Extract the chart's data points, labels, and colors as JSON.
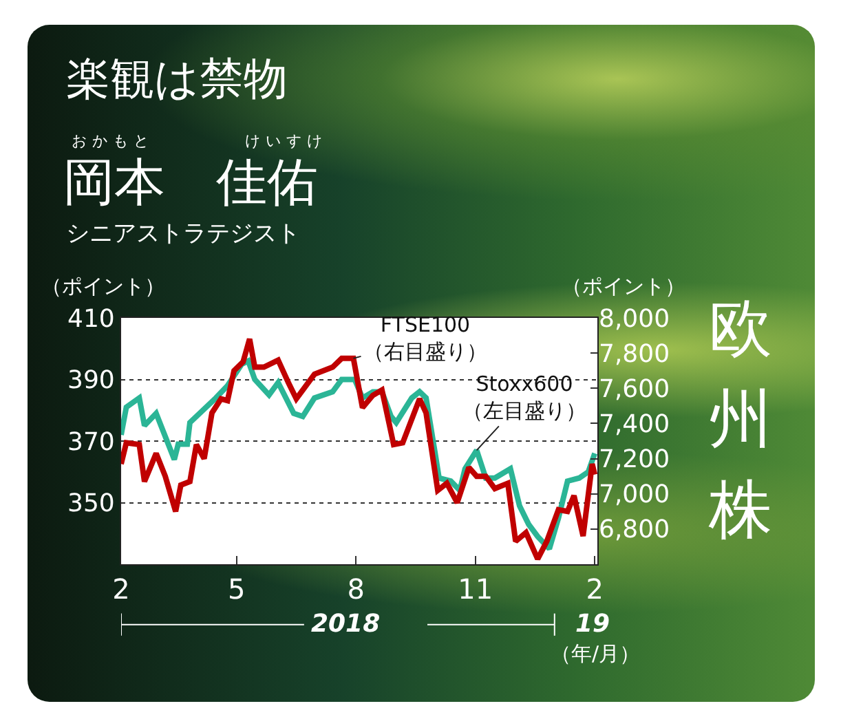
{
  "chart_data": {
    "type": "line",
    "title": "楽観は禁物",
    "subtitle": "岡本　佳佑",
    "ylabel": "（ポイント）",
    "y2label": "（ポイント）",
    "xlim": [
      "2018-02-01",
      "2019-02-03"
    ],
    "xticks": [
      {
        "value": "2018-02-01",
        "label": "2"
      },
      {
        "value": "2018-05-01",
        "label": "5"
      },
      {
        "value": "2018-08-01",
        "label": "8"
      },
      {
        "value": "2018-11-01",
        "label": "11"
      },
      {
        "value": "2019-02-01",
        "label": "2"
      }
    ],
    "ylim": [
      330,
      410
    ],
    "yticks": [
      350,
      370,
      390,
      410
    ],
    "y2lim": [
      6600,
      8000
    ],
    "y2ticks": [
      {
        "value": 6800,
        "label": "6,800"
      },
      {
        "value": 7000,
        "label": "7,000"
      },
      {
        "value": 7200,
        "label": "7,200"
      },
      {
        "value": 7400,
        "label": "7,400"
      },
      {
        "value": 7600,
        "label": "7,600"
      },
      {
        "value": 7800,
        "label": "7,800"
      },
      {
        "value": 8000,
        "label": "8,000"
      }
    ],
    "grid": "y",
    "series": [
      {
        "name": "Stoxx600",
        "color": "#2bb596",
        "x": [
          "2018-02-01",
          "2018-02-05",
          "2018-02-15",
          "2018-02-19",
          "2018-02-28",
          "2018-03-14",
          "2018-03-17",
          "2018-03-24",
          "2018-03-26",
          "2018-04-15",
          "2018-04-24",
          "2018-05-05",
          "2018-05-10",
          "2018-05-15",
          "2018-05-26",
          "2018-06-02",
          "2018-06-14",
          "2018-06-21",
          "2018-06-30",
          "2018-07-14",
          "2018-07-21",
          "2018-07-31",
          "2018-08-06",
          "2018-08-14",
          "2018-08-21",
          "2018-08-28",
          "2018-09-01",
          "2018-09-13",
          "2018-09-19",
          "2018-09-24",
          "2018-10-01",
          "2018-10-04",
          "2018-10-13",
          "2018-10-20",
          "2018-10-24",
          "2018-11-02",
          "2018-11-09",
          "2018-11-16",
          "2018-11-28",
          "2018-12-05",
          "2018-12-12",
          "2018-12-19",
          "2018-12-28",
          "2019-01-04",
          "2019-01-11",
          "2019-01-20",
          "2019-01-27",
          "2019-02-01"
        ],
        "values": [
          372,
          381,
          384,
          375,
          379,
          364,
          369,
          369,
          376,
          384,
          388,
          395,
          396,
          390,
          385,
          389,
          379,
          378,
          384,
          386,
          390,
          390,
          384,
          386,
          386,
          378,
          376,
          384,
          386,
          384,
          366,
          358,
          357,
          354,
          361,
          367,
          358,
          358,
          361,
          349,
          343,
          339,
          335,
          345,
          357,
          358,
          360,
          366
        ]
      },
      {
        "name": "FTSE100",
        "color": "#c00000",
        "axis": "y2",
        "x": [
          "2018-02-01",
          "2018-02-05",
          "2018-02-15",
          "2018-02-19",
          "2018-02-28",
          "2018-03-07",
          "2018-03-15",
          "2018-03-19",
          "2018-03-26",
          "2018-03-31",
          "2018-04-06",
          "2018-04-12",
          "2018-04-19",
          "2018-04-24",
          "2018-04-29",
          "2018-05-06",
          "2018-05-11",
          "2018-05-15",
          "2018-05-22",
          "2018-06-02",
          "2018-06-10",
          "2018-06-16",
          "2018-06-30",
          "2018-07-14",
          "2018-07-21",
          "2018-07-30",
          "2018-08-06",
          "2018-08-14",
          "2018-08-21",
          "2018-08-30",
          "2018-09-06",
          "2018-09-19",
          "2018-09-24",
          "2018-10-03",
          "2018-10-10",
          "2018-10-18",
          "2018-10-27",
          "2018-11-02",
          "2018-11-09",
          "2018-11-16",
          "2018-11-26",
          "2018-12-02",
          "2018-12-10",
          "2018-12-19",
          "2018-12-26",
          "2019-01-04",
          "2019-01-11",
          "2019-01-16",
          "2019-01-23",
          "2019-01-30",
          "2019-02-01"
        ],
        "values": [
          7170,
          7290,
          7280,
          7070,
          7230,
          7100,
          6900,
          7050,
          7070,
          7280,
          7200,
          7460,
          7540,
          7530,
          7700,
          7750,
          7880,
          7720,
          7720,
          7760,
          7630,
          7540,
          7680,
          7720,
          7770,
          7770,
          7490,
          7560,
          7590,
          7280,
          7290,
          7540,
          7460,
          7020,
          7060,
          6950,
          7150,
          7100,
          7100,
          7030,
          7060,
          6730,
          6780,
          6630,
          6730,
          6910,
          6900,
          6990,
          6760,
          7170,
          7110
        ]
      }
    ],
    "annotations": [
      {
        "text": "（左目盛り）",
        "x": "2018-11-02",
        "y": 367
      },
      "（右目盛り）",
      "2018",
      "19",
      "（年/月）",
      "おかもと",
      "けいすけ",
      "シニアストラテジスト",
      "欧州株"
    ]
  }
}
